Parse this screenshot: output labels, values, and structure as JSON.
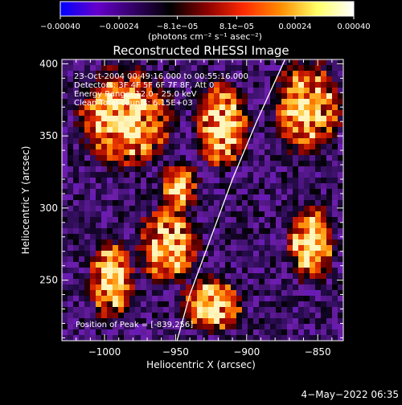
{
  "chart_data": {
    "type": "heatmap",
    "title": "Reconstructed RHESSI Image",
    "xlabel": "Heliocentric X (arcsec)",
    "ylabel": "Heliocentric Y (arcsec)",
    "xlim": [
      -1030,
      -832
    ],
    "ylim": [
      208,
      403
    ],
    "x_ticks": [
      -1000,
      -950,
      -900,
      -850
    ],
    "y_ticks": [
      250,
      300,
      350,
      400
    ],
    "x_tick_labels": [
      "−1000",
      "−950",
      "−900",
      "−850"
    ],
    "y_tick_labels": [
      "250",
      "300",
      "350",
      "400"
    ],
    "colorbar": {
      "range": [
        -0.0004,
        0.0004
      ],
      "ticks": [
        -0.0004,
        -0.00024,
        -8.1e-05,
        8.1e-05,
        0.00024,
        0.0004
      ],
      "tick_labels": [
        "−0.00040",
        "−0.00024",
        "−8.1e−05",
        "8.1e−05",
        "0.00024",
        "0.00040"
      ],
      "label": "(photons cm⁻² s⁻¹ asec⁻²)",
      "colors": [
        "#0000ff",
        "#6600cc",
        "#330066",
        "#000000",
        "#8b0000",
        "#ff2a00",
        "#ff8c00",
        "#ffff66",
        "#ffffff"
      ]
    },
    "annotations": [
      "23-Oct-2004 00:49:16.000 to 00:55:16.000",
      "Detectors: 3F 4F 5F 6F 7F 8F, Att 0",
      "Energy Range: 12.0 - 25.0 keV",
      "Clean     Total counts: 6.15E+03"
    ],
    "peak_label": "Position of Peak = [-839,256]",
    "peak": [
      -839,
      256
    ],
    "limb_points": [
      [
        -949,
        208
      ],
      [
        -940,
        240
      ],
      [
        -925,
        280
      ],
      [
        -910,
        320
      ],
      [
        -893,
        360
      ],
      [
        -873,
        403
      ]
    ],
    "hot_bands": [
      {
        "x": [
          -1015,
          -955
        ],
        "y": [
          330,
          395
        ]
      },
      {
        "x": [
          -975,
          -935
        ],
        "y": [
          250,
          300
        ]
      },
      {
        "x": [
          -1010,
          -980
        ],
        "y": [
          225,
          275
        ]
      },
      {
        "x": [
          -945,
          -905
        ],
        "y": [
          215,
          250
        ]
      },
      {
        "x": [
          -935,
          -900
        ],
        "y": [
          330,
          385
        ]
      },
      {
        "x": [
          -960,
          -935
        ],
        "y": [
          300,
          330
        ]
      },
      {
        "x": [
          -870,
          -840
        ],
        "y": [
          250,
          300
        ]
      },
      {
        "x": [
          -880,
          -835
        ],
        "y": [
          340,
          400
        ]
      }
    ]
  },
  "footer": {
    "date": "4−May−2022 06:35"
  }
}
